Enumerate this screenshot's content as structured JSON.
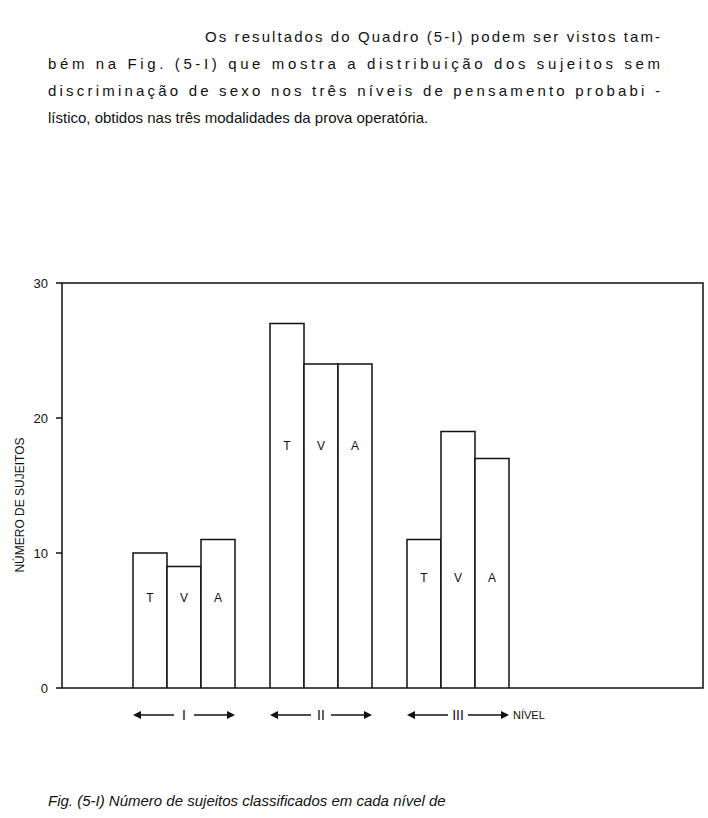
{
  "text": {
    "lines": [
      "Os resultados do Quadro (5-I) podem ser vistos tam-",
      "bém na Fig. (5-I) que mostra a distribuição dos sujeitos  sem",
      "discriminação de sexo nos três níveis de pensamento probabi -",
      "lístico, obtidos nas três modalidades da prova operatória."
    ]
  },
  "chart_data": {
    "type": "bar",
    "x_label": "NÍVEL",
    "y_label": "NÚMERO DE SUJEITOS",
    "categories": [
      "I",
      "II",
      "III"
    ],
    "series": [
      {
        "name": "T",
        "color": "#ffffff",
        "values": [
          10,
          27,
          11
        ]
      },
      {
        "name": "V",
        "color": "#ffffff",
        "values": [
          9,
          24,
          19
        ]
      },
      {
        "name": "A",
        "color": "#ffffff",
        "values": [
          11,
          24,
          17
        ]
      }
    ],
    "ylim": [
      0,
      30
    ],
    "yticks": [
      0,
      10,
      20,
      30
    ],
    "grid": false
  },
  "caption": "Fig. (5-I) Número de sujeitos classificados em cada nível de"
}
